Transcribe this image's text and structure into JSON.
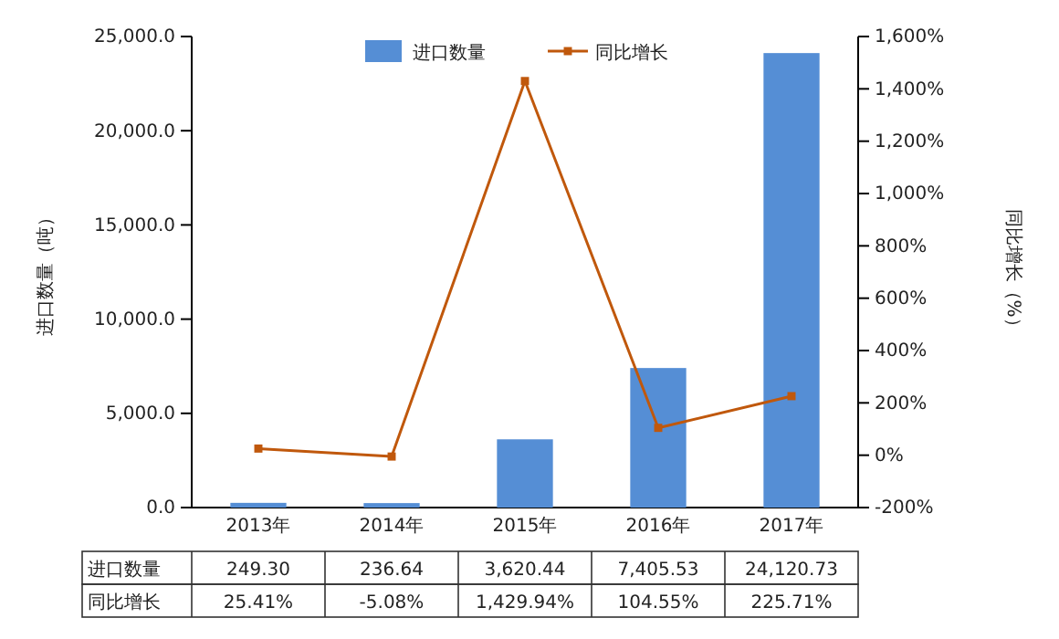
{
  "chart_data": {
    "type": "bar",
    "categories": [
      "2013年",
      "2014年",
      "2015年",
      "2016年",
      "2017年"
    ],
    "ylabel": "进口数量（吨）",
    "y2label": "同比增长（%）",
    "ylim": [
      0,
      25000
    ],
    "yticks": [
      {
        "value": 0,
        "label": "0.0"
      },
      {
        "value": 5000,
        "label": "5,000.0"
      },
      {
        "value": 10000,
        "label": "10,000.0"
      },
      {
        "value": 15000,
        "label": "15,000.0"
      },
      {
        "value": 20000,
        "label": "20,000.0"
      },
      {
        "value": 25000,
        "label": "25,000.0"
      }
    ],
    "y2lim": [
      -200,
      1600
    ],
    "y2ticks": [
      {
        "value": -200,
        "label": "-200%"
      },
      {
        "value": 0,
        "label": "0%"
      },
      {
        "value": 200,
        "label": "200%"
      },
      {
        "value": 400,
        "label": "400%"
      },
      {
        "value": 600,
        "label": "600%"
      },
      {
        "value": 800,
        "label": "800%"
      },
      {
        "value": 1000,
        "label": "1,000%"
      },
      {
        "value": 1200,
        "label": "1,200%"
      },
      {
        "value": 1400,
        "label": "1,400%"
      },
      {
        "value": 1600,
        "label": "1,600%"
      }
    ],
    "legend": "top",
    "marker": "square",
    "series": [
      {
        "name": "进口数量",
        "color": "#558ed5",
        "values": [
          249.3,
          236.64,
          3620.44,
          7405.53,
          24120.73
        ],
        "value_labels": [
          "249.30",
          "236.64",
          "3,620.44",
          "7,405.53",
          "24,120.73"
        ]
      },
      {
        "name": "同比增长",
        "type": "line",
        "axis": "y2",
        "color": "#c0580c",
        "values": [
          25.41,
          -5.08,
          1429.94,
          104.55,
          225.71
        ],
        "value_labels": [
          "25.41%",
          "-5.08%",
          "1,429.94%",
          "104.55%",
          "225.71%"
        ]
      }
    ]
  }
}
